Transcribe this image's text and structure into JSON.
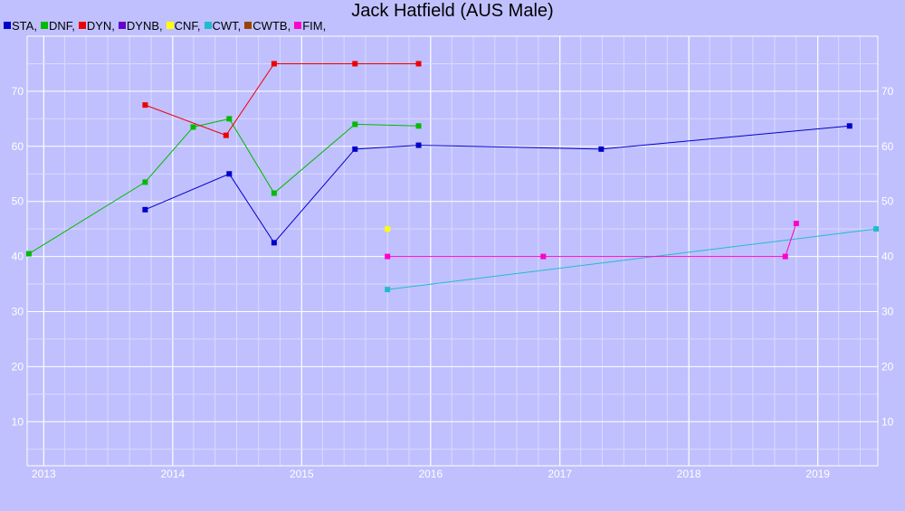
{
  "chart_data": {
    "type": "line",
    "title": "Jack Hatfield (AUS Male)",
    "xlabel": "",
    "ylabel": "",
    "x_ticks": [
      "2013",
      "2014",
      "2015",
      "2016",
      "2017",
      "2018",
      "2019"
    ],
    "y_ticks": [
      10,
      20,
      30,
      40,
      50,
      60,
      70
    ],
    "xlim": [
      "2012-11-15",
      "2019-06-20"
    ],
    "ylim": [
      2,
      80
    ],
    "grid": true,
    "legend_position": "top-left",
    "series": [
      {
        "name": "STA",
        "color": "#0000cc",
        "points": [
          {
            "x": "2013-10-15",
            "y": 48.5
          },
          {
            "x": "2014-06-10",
            "y": 55
          },
          {
            "x": "2014-10-15",
            "y": 42.5
          },
          {
            "x": "2015-06-01",
            "y": 59.5
          },
          {
            "x": "2015-11-28",
            "y": 60.2
          },
          {
            "x": "2017-04-28",
            "y": 59.5
          },
          {
            "x": "2019-04-01",
            "y": 63.7
          }
        ]
      },
      {
        "name": "DNF",
        "color": "#00bb00",
        "points": [
          {
            "x": "2012-11-20",
            "y": 40.5
          },
          {
            "x": "2013-10-15",
            "y": 53.5
          },
          {
            "x": "2014-02-28",
            "y": 63.5
          },
          {
            "x": "2014-06-10",
            "y": 65
          },
          {
            "x": "2014-10-15",
            "y": 51.5
          },
          {
            "x": "2015-06-01",
            "y": 64
          },
          {
            "x": "2015-11-28",
            "y": 63.7
          }
        ]
      },
      {
        "name": "DYN",
        "color": "#ee0000",
        "points": [
          {
            "x": "2013-10-15",
            "y": 67.5
          },
          {
            "x": "2014-06-01",
            "y": 62
          },
          {
            "x": "2014-10-15",
            "y": 75
          },
          {
            "x": "2015-06-01",
            "y": 75
          },
          {
            "x": "2015-11-28",
            "y": 75
          }
        ]
      },
      {
        "name": "DYNB",
        "color": "#6600cc",
        "points": []
      },
      {
        "name": "CNF",
        "color": "#ffff00",
        "points": [
          {
            "x": "2015-09-01",
            "y": 45
          }
        ]
      },
      {
        "name": "CWT",
        "color": "#22bbcc",
        "points": [
          {
            "x": "2015-09-01",
            "y": 34
          },
          {
            "x": "2019-06-15",
            "y": 45
          }
        ]
      },
      {
        "name": "CWTB",
        "color": "#994400",
        "points": []
      },
      {
        "name": "FIM",
        "color": "#ff00cc",
        "points": [
          {
            "x": "2015-09-01",
            "y": 40
          },
          {
            "x": "2016-11-15",
            "y": 40
          },
          {
            "x": "2018-10-01",
            "y": 40
          },
          {
            "x": "2018-11-01",
            "y": 46
          }
        ]
      }
    ]
  }
}
